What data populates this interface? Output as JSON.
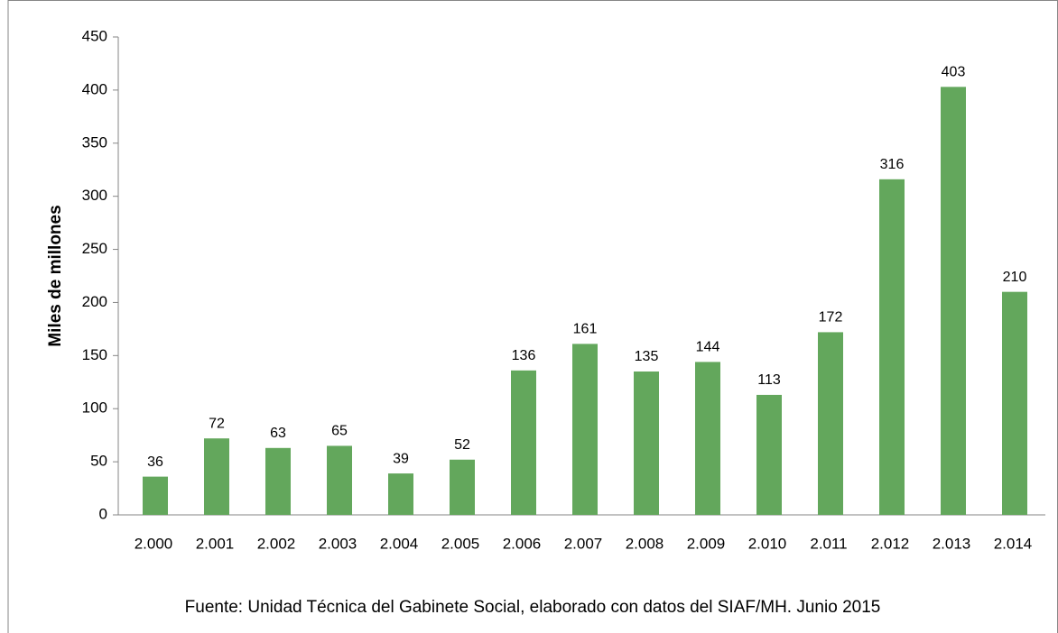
{
  "chart_data": {
    "type": "bar",
    "y_label": "Miles de millones",
    "source": "Fuente: Unidad Técnica del Gabinete Social, elaborado con datos del SIAF/MH. Junio 2015",
    "categories": [
      "2.000",
      "2.001",
      "2.002",
      "2.003",
      "2.004",
      "2.005",
      "2.006",
      "2.007",
      "2.008",
      "2.009",
      "2.010",
      "2.011",
      "2.012",
      "2.013",
      "2.014"
    ],
    "values": [
      36,
      72,
      63,
      65,
      39,
      52,
      136,
      161,
      135,
      144,
      113,
      172,
      316,
      403,
      210
    ],
    "color": "#63a75c",
    "ylim": [
      0,
      450
    ],
    "yticks": [
      0,
      50,
      100,
      150,
      200,
      250,
      300,
      350,
      400,
      450
    ],
    "grid": false
  }
}
